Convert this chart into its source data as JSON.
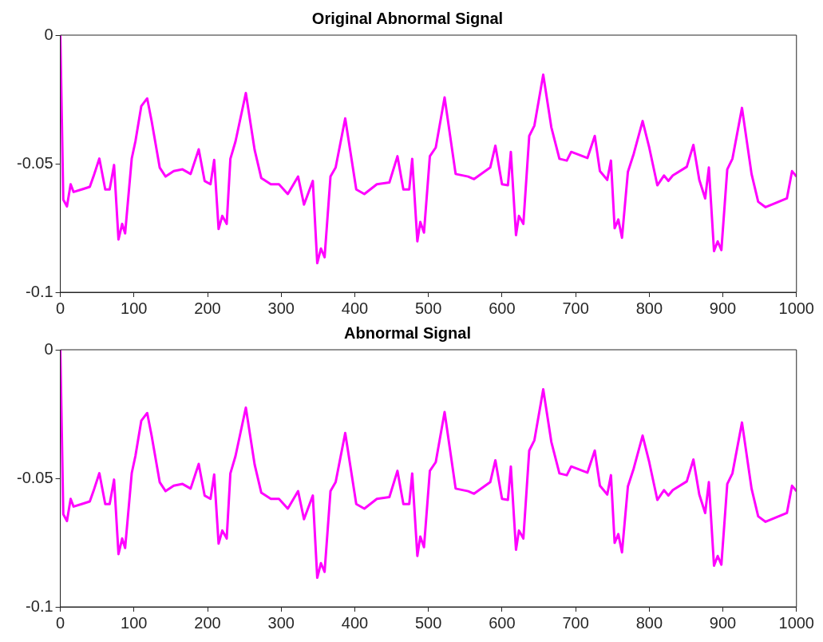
{
  "chart_data": [
    {
      "type": "line",
      "title": "Original Abnormal Signal",
      "x": [
        0,
        4,
        9,
        14,
        18,
        29,
        40,
        45,
        53,
        61,
        67,
        73,
        79,
        84,
        88,
        97,
        102,
        110,
        118,
        124,
        135,
        143,
        154,
        166,
        177,
        188,
        196,
        204,
        209,
        215,
        220,
        226,
        231,
        238,
        252,
        264,
        273,
        286,
        297,
        309,
        323,
        331,
        343,
        349,
        354,
        359,
        367,
        374,
        387,
        402,
        413,
        430,
        447,
        458,
        466,
        474,
        478,
        485,
        489,
        494,
        502,
        510,
        522,
        537,
        554,
        562,
        584,
        591,
        600,
        608,
        612,
        619,
        623,
        629,
        637,
        644,
        656,
        667,
        678,
        688,
        694,
        716,
        726,
        733,
        743,
        748,
        753,
        758,
        763,
        771,
        779,
        791,
        800,
        811,
        820,
        826,
        832,
        851,
        860,
        868,
        876,
        881,
        888,
        893,
        898,
        906,
        913,
        926,
        939,
        948,
        958,
        987,
        994,
        1000
      ],
      "series": [
        {
          "color": "#ff00ff",
          "values": [
            0,
            -0.064,
            -0.0666,
            -0.058,
            -0.061,
            -0.06,
            -0.059,
            -0.055,
            -0.048,
            -0.06,
            -0.06,
            -0.0505,
            -0.0795,
            -0.0734,
            -0.0771,
            -0.048,
            -0.0413,
            -0.0276,
            -0.0246,
            -0.0334,
            -0.0515,
            -0.055,
            -0.0529,
            -0.0522,
            -0.054,
            -0.0444,
            -0.0567,
            -0.058,
            -0.0485,
            -0.0754,
            -0.0703,
            -0.0734,
            -0.0481,
            -0.0413,
            -0.0225,
            -0.0447,
            -0.0556,
            -0.058,
            -0.058,
            -0.0618,
            -0.055,
            -0.0659,
            -0.0567,
            -0.0887,
            -0.083,
            -0.0864,
            -0.055,
            -0.0515,
            -0.0324,
            -0.06,
            -0.0618,
            -0.058,
            -0.0573,
            -0.0471,
            -0.06,
            -0.06,
            -0.0481,
            -0.0802,
            -0.0727,
            -0.0768,
            -0.0471,
            -0.0437,
            -0.0242,
            -0.054,
            -0.055,
            -0.056,
            -0.0515,
            -0.043,
            -0.058,
            -0.0584,
            -0.0454,
            -0.0778,
            -0.0703,
            -0.0734,
            -0.0392,
            -0.0352,
            -0.0154,
            -0.0358,
            -0.0481,
            -0.0488,
            -0.0454,
            -0.0478,
            -0.0392,
            -0.0529,
            -0.0563,
            -0.0488,
            -0.0751,
            -0.0717,
            -0.0788,
            -0.0532,
            -0.0461,
            -0.0334,
            -0.0437,
            -0.0584,
            -0.0546,
            -0.0567,
            -0.0546,
            -0.0512,
            -0.0427,
            -0.0563,
            -0.0635,
            -0.0515,
            -0.084,
            -0.0802,
            -0.0836,
            -0.0522,
            -0.0481,
            -0.0283,
            -0.054,
            -0.0648,
            -0.0669,
            -0.0635,
            -0.0529,
            -0.055
          ]
        }
      ],
      "xlim": [
        0,
        1000
      ],
      "xticks": [
        0,
        100,
        200,
        300,
        400,
        500,
        600,
        700,
        800,
        900,
        1000
      ],
      "ylim": [
        -0.1,
        0
      ],
      "yticks": [
        -0.1,
        -0.05,
        0
      ],
      "grid": false,
      "legend": false
    },
    {
      "type": "line",
      "title": "Abnormal Signal",
      "x": [
        0,
        4,
        9,
        14,
        18,
        29,
        40,
        45,
        53,
        61,
        67,
        73,
        79,
        84,
        88,
        97,
        102,
        110,
        118,
        124,
        135,
        143,
        154,
        166,
        177,
        188,
        196,
        204,
        209,
        215,
        220,
        226,
        231,
        238,
        252,
        264,
        273,
        286,
        297,
        309,
        323,
        331,
        343,
        349,
        354,
        359,
        367,
        374,
        387,
        402,
        413,
        430,
        447,
        458,
        466,
        474,
        478,
        485,
        489,
        494,
        502,
        510,
        522,
        537,
        554,
        562,
        584,
        591,
        600,
        608,
        612,
        619,
        623,
        629,
        637,
        644,
        656,
        667,
        678,
        688,
        694,
        716,
        726,
        733,
        743,
        748,
        753,
        758,
        763,
        771,
        779,
        791,
        800,
        811,
        820,
        826,
        832,
        851,
        860,
        868,
        876,
        881,
        888,
        893,
        898,
        906,
        913,
        926,
        939,
        948,
        958,
        987,
        994,
        1000
      ],
      "series": [
        {
          "color": "#ff00ff",
          "values": [
            0,
            -0.064,
            -0.0666,
            -0.058,
            -0.061,
            -0.06,
            -0.059,
            -0.055,
            -0.048,
            -0.06,
            -0.06,
            -0.0505,
            -0.0795,
            -0.0734,
            -0.0771,
            -0.048,
            -0.0413,
            -0.0276,
            -0.0246,
            -0.0334,
            -0.0515,
            -0.055,
            -0.0529,
            -0.0522,
            -0.054,
            -0.0444,
            -0.0567,
            -0.058,
            -0.0485,
            -0.0754,
            -0.0703,
            -0.0734,
            -0.0481,
            -0.0413,
            -0.0225,
            -0.0447,
            -0.0556,
            -0.058,
            -0.058,
            -0.0618,
            -0.055,
            -0.0659,
            -0.0567,
            -0.0887,
            -0.083,
            -0.0864,
            -0.055,
            -0.0515,
            -0.0324,
            -0.06,
            -0.0618,
            -0.058,
            -0.0573,
            -0.0471,
            -0.06,
            -0.06,
            -0.0481,
            -0.0802,
            -0.0727,
            -0.0768,
            -0.0471,
            -0.0437,
            -0.0242,
            -0.054,
            -0.055,
            -0.056,
            -0.0515,
            -0.043,
            -0.058,
            -0.0584,
            -0.0454,
            -0.0778,
            -0.0703,
            -0.0734,
            -0.0392,
            -0.0352,
            -0.0154,
            -0.0358,
            -0.0481,
            -0.0488,
            -0.0454,
            -0.0478,
            -0.0392,
            -0.0529,
            -0.0563,
            -0.0488,
            -0.0751,
            -0.0717,
            -0.0788,
            -0.0532,
            -0.0461,
            -0.0334,
            -0.0437,
            -0.0584,
            -0.0546,
            -0.0567,
            -0.0546,
            -0.0512,
            -0.0427,
            -0.0563,
            -0.0635,
            -0.0515,
            -0.084,
            -0.0802,
            -0.0836,
            -0.0522,
            -0.0481,
            -0.0283,
            -0.054,
            -0.0648,
            -0.0669,
            -0.0635,
            -0.0529,
            -0.055
          ]
        }
      ],
      "xlim": [
        0,
        1000
      ],
      "xticks": [
        0,
        100,
        200,
        300,
        400,
        500,
        600,
        700,
        800,
        900,
        1000
      ],
      "ylim": [
        -0.1,
        0
      ],
      "yticks": [
        -0.1,
        -0.05,
        0
      ],
      "grid": false,
      "legend": false
    }
  ]
}
